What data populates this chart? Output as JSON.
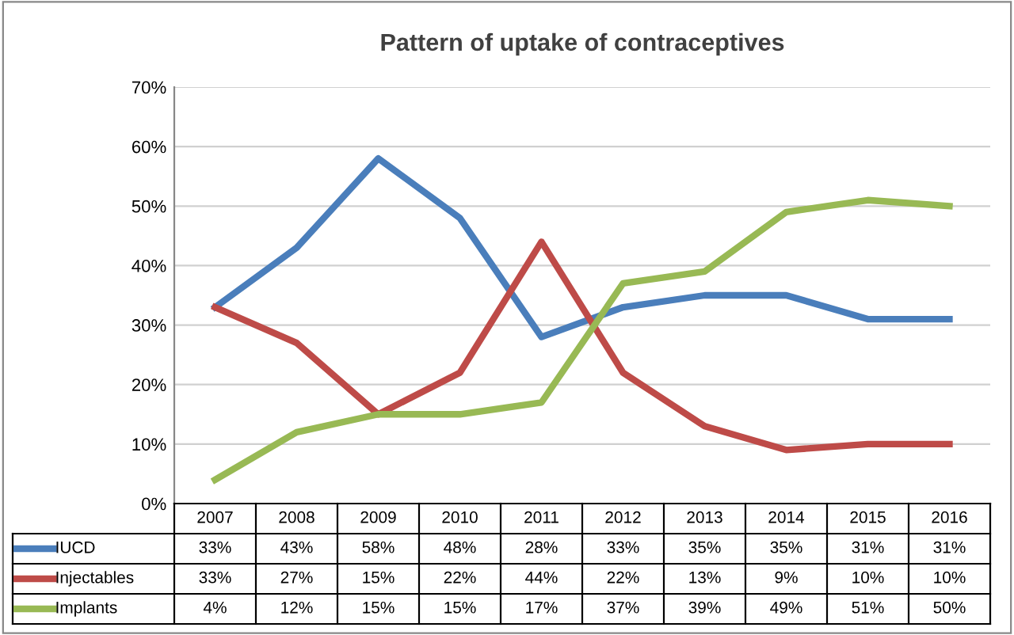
{
  "chart_data": {
    "type": "line",
    "title": "Pattern of uptake of contraceptives",
    "categories": [
      "2007",
      "2008",
      "2009",
      "2010",
      "2011",
      "2012",
      "2013",
      "2014",
      "2015",
      "2016"
    ],
    "series": [
      {
        "name": "IUCD",
        "color": "#4a7ebb",
        "values": [
          33,
          43,
          58,
          48,
          28,
          33,
          35,
          35,
          31,
          31
        ],
        "value_labels": [
          "33%",
          "43%",
          "58%",
          "48%",
          "28%",
          "33%",
          "35%",
          "35%",
          "31%",
          "31%"
        ]
      },
      {
        "name": "Injectables",
        "color": "#be4b48",
        "values": [
          33,
          27,
          15,
          22,
          44,
          22,
          13,
          9,
          10,
          10
        ],
        "value_labels": [
          "33%",
          "27%",
          "15%",
          "22%",
          "44%",
          "22%",
          "13%",
          "9%",
          "10%",
          "10%"
        ]
      },
      {
        "name": "Implants",
        "color": "#98b954",
        "values": [
          4,
          12,
          15,
          15,
          17,
          37,
          39,
          49,
          51,
          50
        ],
        "value_labels": [
          "4%",
          "12%",
          "15%",
          "15%",
          "17%",
          "37%",
          "39%",
          "49%",
          "51%",
          "50%"
        ]
      }
    ],
    "ylim": [
      0,
      70
    ],
    "yticks": [
      {
        "value": 0,
        "label": "0%"
      },
      {
        "value": 10,
        "label": "10%"
      },
      {
        "value": 20,
        "label": "20%"
      },
      {
        "value": 30,
        "label": "30%"
      },
      {
        "value": 40,
        "label": "40%"
      },
      {
        "value": 50,
        "label": "50%"
      },
      {
        "value": 60,
        "label": "60%"
      },
      {
        "value": 70,
        "label": "70%"
      }
    ],
    "grid": "y",
    "legend": "bottom",
    "marker": "none",
    "line_style": "solid"
  }
}
